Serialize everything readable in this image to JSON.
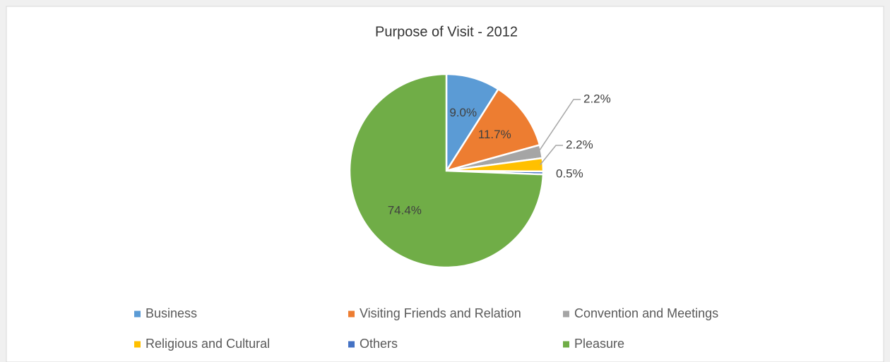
{
  "chart_data": {
    "type": "pie",
    "title": "Purpose of Visit - 2012",
    "categories": [
      "Business",
      "Visiting Friends and Relation",
      "Convention and Meetings",
      "Religious and Cultural",
      "Others",
      "Pleasure"
    ],
    "values": [
      9.0,
      11.7,
      2.2,
      2.2,
      0.5,
      74.4
    ],
    "value_labels": [
      "9.0%",
      "11.7%",
      "2.2%",
      "2.2%",
      "0.5%",
      "74.4%"
    ],
    "colors": [
      "#5b9bd5",
      "#ed7d31",
      "#a5a5a5",
      "#ffc000",
      "#4472c4",
      "#70ad47"
    ],
    "legend": "bottom"
  }
}
